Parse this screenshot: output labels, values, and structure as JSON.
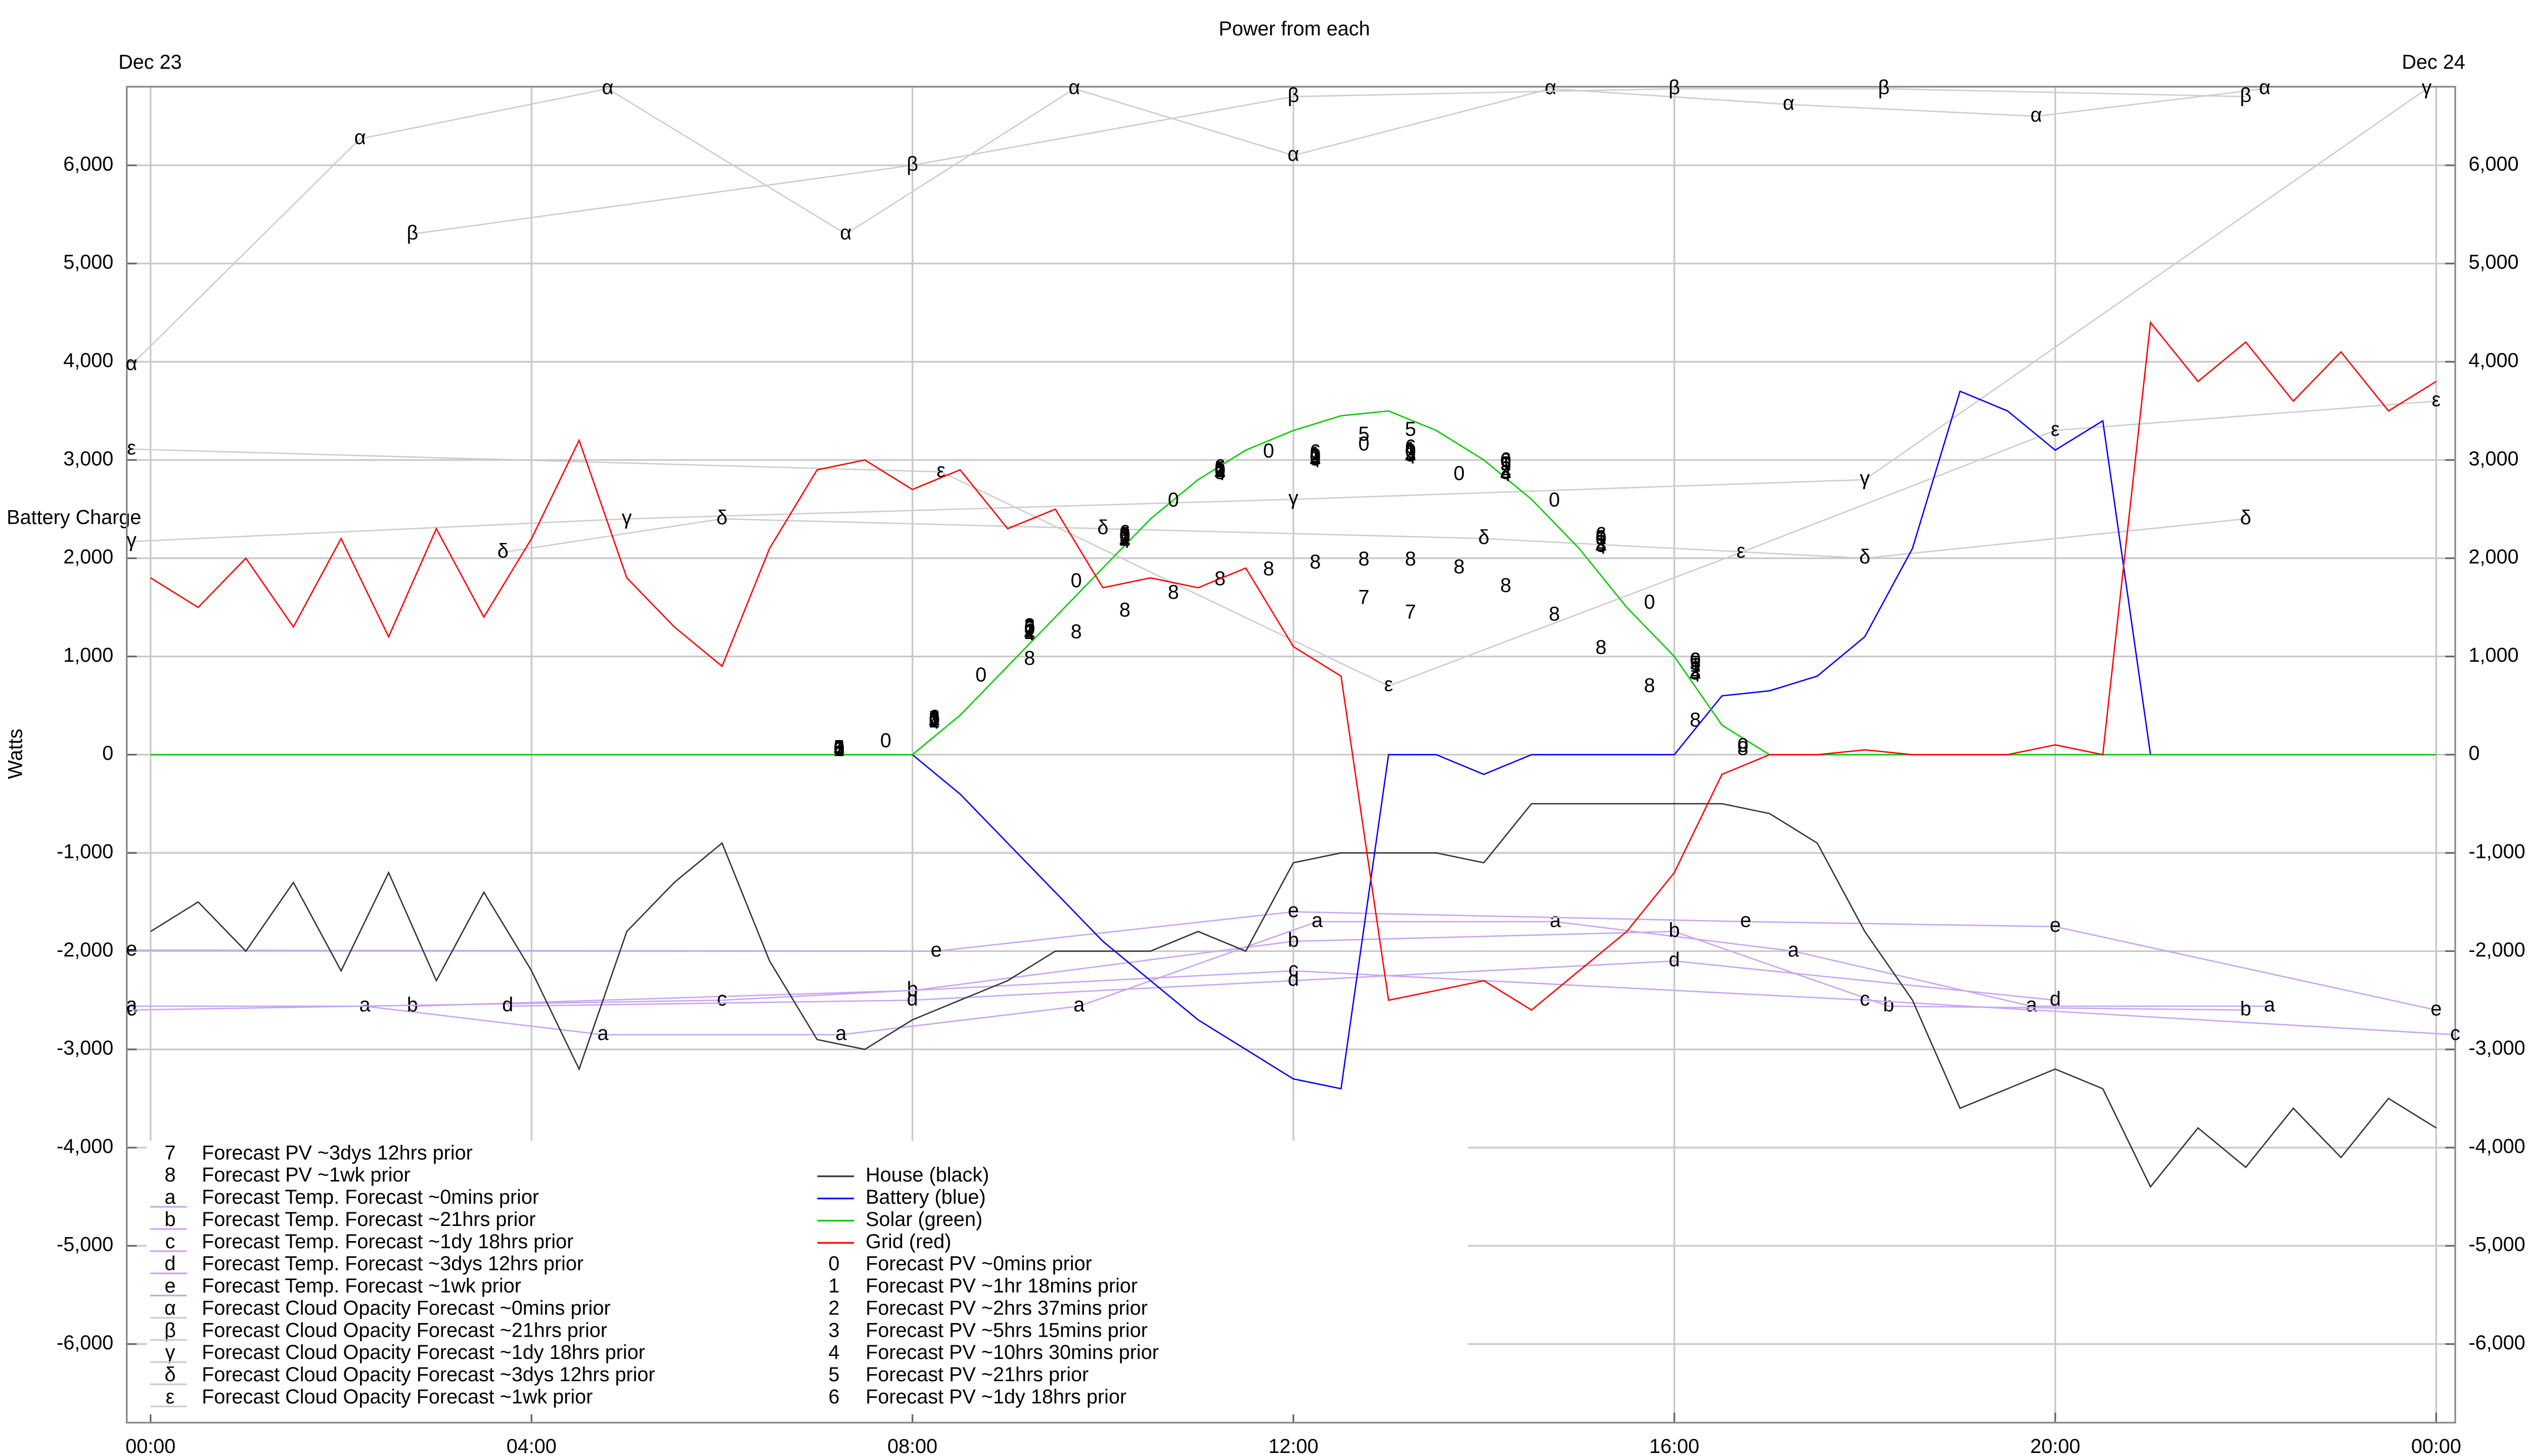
{
  "chart_data": {
    "type": "line",
    "title": "Power from each",
    "y_label": "Watts",
    "dates": [
      "Dec 23",
      "Dec 24"
    ],
    "annotations": [
      "Battery Charge"
    ],
    "xlim": [
      -0.25,
      24.2
    ],
    "ylim": [
      -6800,
      6800
    ],
    "xticks": [
      {
        "value": 0,
        "label": "00:00"
      },
      {
        "value": 4,
        "label": "04:00"
      },
      {
        "value": 8,
        "label": "08:00"
      },
      {
        "value": 12,
        "label": "12:00"
      },
      {
        "value": 16,
        "label": "16:00"
      },
      {
        "value": 20,
        "label": "20:00"
      },
      {
        "value": 24,
        "label": "00:00"
      }
    ],
    "yticks": [
      {
        "value": -6000,
        "label": "-6,000"
      },
      {
        "value": -5000,
        "label": "-5,000"
      },
      {
        "value": -4000,
        "label": "-4,000"
      },
      {
        "value": -3000,
        "label": "-3,000"
      },
      {
        "value": -2000,
        "label": "-2,000"
      },
      {
        "value": -1000,
        "label": "-1,000"
      },
      0,
      {
        "value": 1000,
        "label": "1,000"
      },
      {
        "value": 2000,
        "label": "2,000"
      },
      {
        "value": 3000,
        "label": "3,000"
      },
      {
        "value": 4000,
        "label": "4,000"
      },
      {
        "value": 5000,
        "label": "5,000"
      },
      {
        "value": 6000,
        "label": "6,000"
      }
    ],
    "grid": true,
    "x": [
      0,
      0.5,
      1,
      1.5,
      2,
      2.5,
      3,
      3.5,
      4,
      4.5,
      5,
      5.5,
      6,
      6.5,
      7,
      7.5,
      8,
      8.5,
      9,
      9.5,
      10,
      10.5,
      11,
      11.5,
      12,
      12.5,
      13,
      13.5,
      14,
      14.5,
      15,
      15.5,
      16,
      16.5,
      17,
      17.5,
      18,
      18.5,
      19,
      19.5,
      20,
      20.5,
      21,
      21.5,
      22,
      22.5,
      23,
      23.5,
      24
    ],
    "series": [
      {
        "name": "Forecast PV ~3dys 12hrs prior",
        "marker": "7",
        "color": "#000000",
        "line": false,
        "x": [
          12.74,
          13.23
        ],
        "values": [
          1590,
          1440
        ]
      },
      {
        "name": "Forecast PV ~1wk prior",
        "marker": "8",
        "color": "#000000",
        "line": false,
        "x": [
          9.23,
          9.72,
          10.23,
          10.74,
          11.23,
          11.74,
          12.23,
          12.74,
          13.23,
          13.74,
          14.23,
          14.74,
          15.23,
          15.74,
          16.22,
          16.72
        ],
        "values": [
          970,
          1240,
          1460,
          1640,
          1780,
          1880,
          1950,
          1980,
          1980,
          1900,
          1710,
          1420,
          1080,
          690,
          340,
          50
        ]
      },
      {
        "name": "Forecast Temp. Forecast ~0mins prior",
        "marker": "a",
        "color": "#c9a3f2",
        "line": true,
        "x": [
          -0.2,
          2.25,
          4.75,
          7.25,
          9.75,
          12.25,
          14.75,
          17.25,
          19.75,
          22.25
        ],
        "values": [
          -2560,
          -2560,
          -2850,
          -2850,
          -2560,
          -1700,
          -1700,
          -2000,
          -2560,
          -2560
        ]
      },
      {
        "name": "Forecast Temp. Forecast ~21hrs prior",
        "marker": "b",
        "color": "#c9a3f2",
        "line": true,
        "x": [
          2.75,
          8,
          12,
          16,
          18.25,
          22
        ],
        "values": [
          -2560,
          -2400,
          -1900,
          -1800,
          -2560,
          -2600
        ]
      },
      {
        "name": "Forecast Temp. Forecast ~1dy 18hrs prior",
        "marker": "c",
        "color": "#c9a3f2",
        "line": true,
        "x": [
          -0.2,
          6,
          12,
          18,
          24.2
        ],
        "values": [
          -2600,
          -2500,
          -2200,
          -2500,
          -2850
        ]
      },
      {
        "name": "Forecast Temp. Forecast ~3dys 12hrs prior",
        "marker": "d",
        "color": "#c9a3f2",
        "line": true,
        "x": [
          3.75,
          8,
          12,
          16,
          20
        ],
        "values": [
          -2560,
          -2500,
          -2300,
          -2100,
          -2500
        ]
      },
      {
        "name": "Forecast Temp. Forecast ~1wk prior",
        "marker": "e",
        "color": "#c9a3f2",
        "line": true,
        "x": [
          -0.2,
          8.25,
          12,
          16.75,
          20,
          24
        ],
        "values": [
          -1990,
          -2000,
          -1600,
          -1700,
          -1750,
          -2600
        ]
      },
      {
        "name": "Forecast Cloud Opacity Forecast ~0mins prior",
        "marker": "α",
        "color": "#cccccc",
        "line": true,
        "x": [
          -0.2,
          2.2,
          4.8,
          7.3,
          9.7,
          12,
          14.7,
          17.2,
          19.8,
          22.2
        ],
        "values": [
          3970,
          6270,
          6780,
          5300,
          6780,
          6100,
          6780,
          6620,
          6500,
          6780
        ]
      },
      {
        "name": "Forecast Cloud Opacity Forecast ~21hrs prior",
        "marker": "β",
        "color": "#cccccc",
        "line": true,
        "x": [
          2.75,
          8,
          12,
          16,
          18.2,
          22
        ],
        "values": [
          5300,
          6000,
          6700,
          6780,
          6780,
          6700
        ]
      },
      {
        "name": "Forecast Cloud Opacity Forecast ~1dy 18hrs prior",
        "marker": "γ",
        "color": "#cccccc",
        "line": true,
        "x": [
          -0.2,
          5,
          12,
          18,
          23.9
        ],
        "values": [
          2170,
          2400,
          2600,
          2800,
          6780
        ]
      },
      {
        "name": "Forecast Cloud Opacity Forecast ~3dys 12hrs prior",
        "marker": "δ",
        "color": "#cccccc",
        "line": true,
        "x": [
          3.7,
          6,
          10,
          14,
          18,
          22
        ],
        "values": [
          2060,
          2400,
          2300,
          2200,
          2000,
          2400
        ]
      },
      {
        "name": "Forecast Cloud Opacity Forecast ~1wk prior",
        "marker": "ε",
        "color": "#cccccc",
        "line": true,
        "x": [
          -0.2,
          8.3,
          13,
          16.7,
          20,
          24
        ],
        "values": [
          3110,
          2880,
          700,
          2060,
          3300,
          3600
        ]
      },
      {
        "name": "House (black)",
        "color": "#333333",
        "line": true,
        "values": [
          -1800,
          -1500,
          -2000,
          -1300,
          -2200,
          -1200,
          -2300,
          -1400,
          -2200,
          -3200,
          -1800,
          -1300,
          -900,
          -2100,
          -2900,
          -3000,
          -2700,
          -2500,
          -2300,
          -2000,
          -2000,
          -2000,
          -1800,
          -2000,
          -1100,
          -1000,
          -1000,
          -1000,
          -1100,
          -500,
          -500,
          -500,
          -500,
          -500,
          -600,
          -900,
          -1800,
          -2500,
          -3600,
          -3400,
          -3200,
          -3400,
          -4400,
          -3800,
          -4200,
          -3600,
          -4100,
          -3500,
          -3800
        ]
      },
      {
        "name": "Battery (blue)",
        "color": "#0000ff",
        "line": true,
        "values": [
          0,
          0,
          0,
          0,
          0,
          0,
          0,
          0,
          0,
          0,
          0,
          0,
          0,
          0,
          0,
          0,
          0,
          -400,
          -900,
          -1400,
          -1900,
          -2300,
          -2700,
          -3000,
          -3300,
          -3400,
          0,
          0,
          -200,
          0,
          0,
          0,
          0,
          600,
          650,
          800,
          1200,
          2100,
          3700,
          3500,
          3100,
          3400,
          0,
          0,
          0,
          0,
          0,
          0,
          0
        ]
      },
      {
        "name": "Solar (green)",
        "color": "#00cc00",
        "line": true,
        "values": [
          0,
          0,
          0,
          0,
          0,
          0,
          0,
          0,
          0,
          0,
          0,
          0,
          0,
          0,
          0,
          0,
          0,
          400,
          900,
          1400,
          1900,
          2400,
          2800,
          3100,
          3300,
          3450,
          3500,
          3300,
          3000,
          2600,
          2100,
          1500,
          1000,
          300,
          0,
          0,
          0,
          0,
          0,
          0,
          0,
          0,
          0,
          0,
          0,
          0,
          0,
          0,
          0
        ]
      },
      {
        "name": "Grid (red)",
        "color": "#ff0000",
        "line": true,
        "values": [
          1800,
          1500,
          2000,
          1300,
          2200,
          1200,
          2300,
          1400,
          2200,
          3200,
          1800,
          1300,
          900,
          2100,
          2900,
          3000,
          2700,
          2900,
          2300,
          2500,
          1700,
          1800,
          1700,
          1900,
          1100,
          800,
          -2500,
          -2400,
          -2300,
          -2600,
          -2200,
          -1800,
          -1200,
          -200,
          0,
          0,
          50,
          0,
          0,
          0,
          100,
          0,
          4400,
          3800,
          4200,
          3600,
          4100,
          3500,
          3800
        ]
      },
      {
        "name": "Forecast PV ~0mins prior",
        "marker": "0",
        "color": "#000000",
        "line": false,
        "x": [
          7.23,
          7.72,
          8.23,
          8.72,
          9.23,
          9.72,
          10.23,
          10.74,
          11.23,
          11.74,
          12.23,
          12.74,
          13.23,
          13.74,
          14.23,
          14.74,
          15.23,
          15.74,
          16.22,
          16.72
        ],
        "values": [
          50,
          130,
          340,
          800,
          1270,
          1760,
          2220,
          2580,
          2880,
          3080,
          3020,
          3150,
          3080,
          2850,
          2980,
          2580,
          2190,
          1540,
          950,
          80
        ]
      },
      {
        "name": "Forecast PV ~1hr 18mins prior",
        "marker": "1",
        "color": "#000000",
        "line": false,
        "x": [
          7.23,
          8.23,
          9.23,
          10.23,
          11.23,
          12.23,
          13.23,
          14.23,
          15.23,
          16.22
        ],
        "values": [
          60,
          350,
          1250,
          2200,
          2900,
          3050,
          3100,
          2950,
          2200,
          900
        ]
      },
      {
        "name": "Forecast PV ~2hrs 37mins prior",
        "marker": "2",
        "color": "#000000",
        "line": false,
        "x": [
          7.23,
          8.23,
          9.23,
          10.23,
          11.23,
          12.23,
          13.23,
          14.23,
          15.23,
          16.22
        ],
        "values": [
          40,
          330,
          1230,
          2180,
          2880,
          3030,
          3060,
          2900,
          2150,
          850
        ]
      },
      {
        "name": "Forecast PV ~5hrs 15mins prior",
        "marker": "3",
        "color": "#000000",
        "line": false,
        "x": [
          7.23,
          8.23,
          9.23,
          10.23,
          11.23,
          12.23,
          13.23,
          14.23,
          15.23,
          16.22
        ],
        "values": [
          50,
          360,
          1300,
          2230,
          2860,
          3000,
          3040,
          2860,
          2120,
          820
        ]
      },
      {
        "name": "Forecast PV ~10hrs 30mins prior",
        "marker": "4",
        "color": "#000000",
        "line": false,
        "x": [
          7.23,
          8.23,
          9.23,
          10.23,
          11.23,
          12.23,
          13.23,
          14.23,
          15.23,
          16.22
        ],
        "values": [
          40,
          320,
          1220,
          2160,
          2850,
          2980,
          3020,
          2840,
          2100,
          800
        ]
      },
      {
        "name": "Forecast PV ~21hrs prior",
        "marker": "5",
        "color": "#000000",
        "line": false,
        "x": [
          7.23,
          8.23,
          9.23,
          10.23,
          11.23,
          12.74,
          13.23,
          14.23,
          15.23,
          16.22
        ],
        "values": [
          60,
          360,
          1280,
          2210,
          2900,
          3250,
          3300,
          2950,
          2200,
          920
        ]
      },
      {
        "name": "Forecast PV ~1dy 18hrs prior",
        "marker": "6",
        "color": "#000000",
        "line": false,
        "x": [
          7.23,
          8.23,
          9.23,
          10.23,
          11.23,
          12.23,
          13.23,
          14.23,
          15.23,
          16.22
        ],
        "values": [
          60,
          370,
          1290,
          2250,
          2920,
          3070,
          3120,
          2990,
          2230,
          950
        ]
      }
    ]
  }
}
